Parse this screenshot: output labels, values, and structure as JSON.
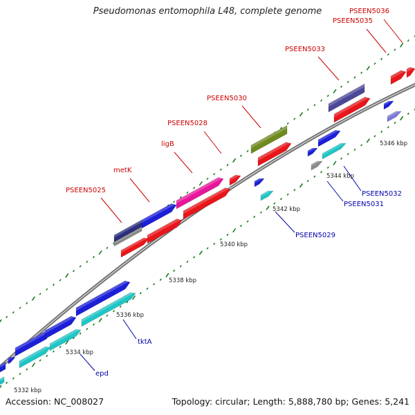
{
  "title": "Pseudomonas entomophila L48, complete genome",
  "footer": {
    "accession": "Accession: NC_008027",
    "topology": "Topology: circular; Length: 5,888,780 bp; Genes: 5,241"
  },
  "colors": {
    "red": "#e8161a",
    "blue": "#1b1fd8",
    "cyan": "#1ec6c6",
    "magenta": "#e8169a",
    "olive": "#6f8a1e",
    "navy": "#2b2f7e",
    "purple": "#4b4898",
    "lavender": "#7a78d8",
    "gray": "#8a8a8a",
    "label_red": "#cc0000",
    "label_blue": "#0000aa",
    "tick": "#1a7a1a"
  },
  "scale_labels": [
    "5332 kbp",
    "5334 kbp",
    "5336 kbp",
    "5338 kbp",
    "5340 kbp",
    "5342 kbp",
    "5344 kbp",
    "5346 kbp"
  ],
  "gene_labels_top": [
    "PSEEN5025",
    "metK",
    "ligB",
    "PSEEN5028",
    "PSEEN5030",
    "PSEEN5033",
    "PSEEN5035",
    "PSEEN5036"
  ],
  "gene_labels_bottom": [
    "epd",
    "tktA",
    "PSEEN5029",
    "PSEEN5031",
    "PSEEN5032"
  ]
}
